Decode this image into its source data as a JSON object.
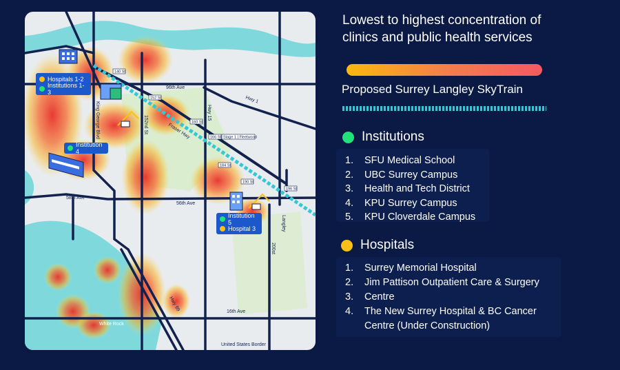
{
  "legend": {
    "title": "Lowest to highest concentration of clinics and public health services",
    "gradient_colors": [
      "#fbb80e",
      "#f47f4a",
      "#f45a62"
    ],
    "skytrain_label": "Proposed Surrey Langley SkyTrain",
    "skytrain_color": "#36c7d6",
    "institutions_heading": "Institutions",
    "institutions_color": "#22e07a",
    "institutions": [
      {
        "num": "1.",
        "name": "SFU Medical School"
      },
      {
        "num": "2.",
        "name": "UBC Surrey Campus"
      },
      {
        "num": "3.",
        "name": "Health and Tech District"
      },
      {
        "num": "4.",
        "name": "KPU Surrey Campus"
      },
      {
        "num": "5.",
        "name": "KPU Cloverdale Campus"
      }
    ],
    "hospitals_heading": "Hospitals",
    "hospitals_color": "#fbbf1a",
    "hospitals": [
      {
        "num": "1.",
        "name": "Surrey Memorial Hospital"
      },
      {
        "num": "2.",
        "name": "Jim Pattison Outpatient Care & Surgery"
      },
      {
        "num": "3.",
        "name": "Centre"
      },
      {
        "num": "4.",
        "name": "The New Surrey Hospital & BC Cancer"
      },
      {
        "num": "",
        "name": "Centre (Under Construction)"
      }
    ]
  },
  "map": {
    "background_color": "#e9ecef",
    "water_color": "#7fd9dc",
    "road_color": "#13214f",
    "labels": {
      "hospitals_1_2": "Hospitals 1-2",
      "institutions_1_3": "Institutions 1-3",
      "institution_4": "Institution 4",
      "institution_5": "Institution 5",
      "hospital_3": "Hospital 3"
    },
    "roads": {
      "ave_96": "96th Ave",
      "hwy_15": "Hwy 15",
      "hwy_1": "Hwy 1",
      "king_george": "King George Blvd",
      "st_152": "152nd St",
      "fraser_hwy": "Fraser Hwy",
      "ave_58": "58th Ave",
      "ave_56": "56th Ave",
      "langley": "Langley",
      "st_200": "200st",
      "hwy_99": "Hwy 99",
      "ave_16": "16th Ave",
      "white_rock": "White Rock",
      "us_border": "United States Border"
    },
    "stations": {
      "s140": "140 St",
      "s152": "152 St",
      "s160": "160 St",
      "s166": "166 St",
      "stage1": "Stage 1 | Fleetwood",
      "s184": "184 St",
      "s190": "190 St",
      "s196": "196 St"
    }
  }
}
